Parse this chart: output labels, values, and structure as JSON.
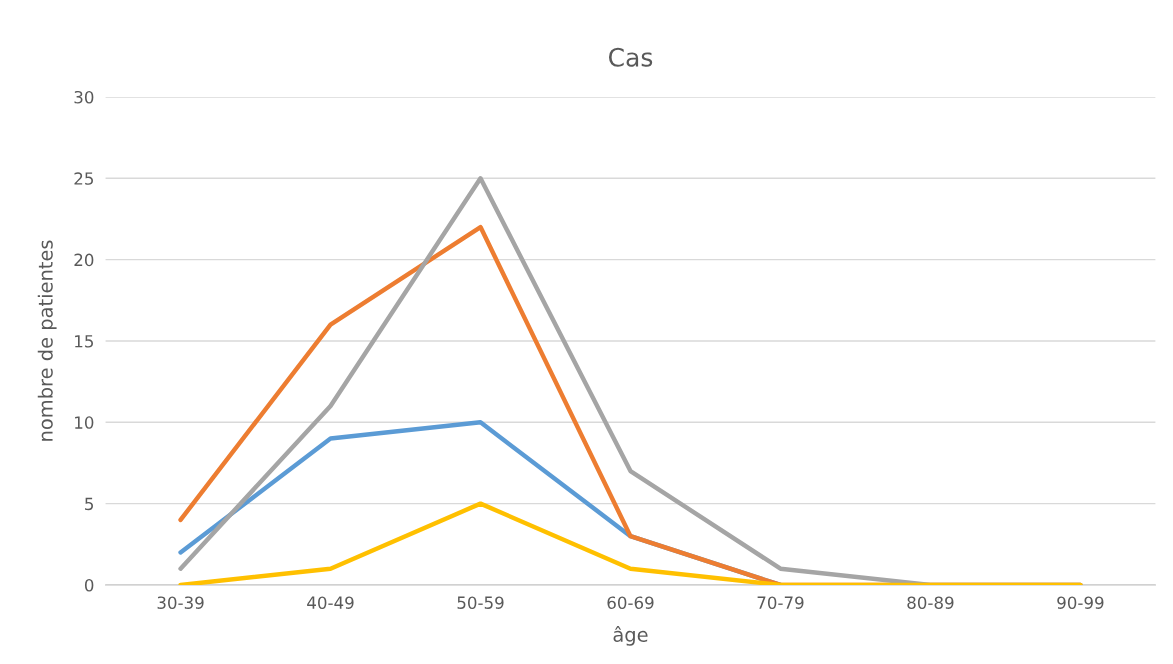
{
  "chart_data": {
    "type": "line",
    "title": "Cas",
    "xlabel": "âge",
    "ylabel": "nombre de patientes",
    "categories": [
      "30-39",
      "40-49",
      "50-59",
      "60-69",
      "70-79",
      "80-89",
      "90-99"
    ],
    "series": [
      {
        "color": "#5b9bd5",
        "values": [
          2,
          9,
          10,
          3,
          0,
          null,
          null
        ]
      },
      {
        "color": "#ed7d31",
        "values": [
          4,
          16,
          22,
          3,
          0,
          0,
          0
        ]
      },
      {
        "color": "#a5a5a5",
        "values": [
          1,
          11,
          25,
          7,
          1,
          0,
          0
        ]
      },
      {
        "color": "#ffc000",
        "values": [
          0,
          1,
          5,
          1,
          0,
          0,
          0
        ]
      }
    ],
    "ylim": [
      0,
      30
    ],
    "yticks": [
      0,
      5,
      10,
      15,
      20,
      25,
      30
    ],
    "grid": "y",
    "marker": "none",
    "line_style": "solid"
  }
}
